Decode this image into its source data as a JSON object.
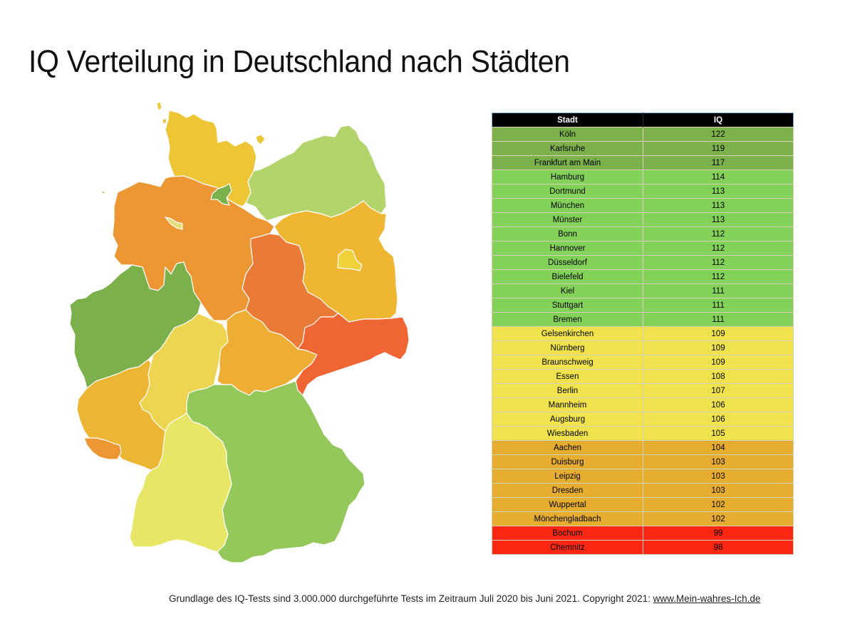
{
  "title": "IQ Verteilung in Deutschland nach Städten",
  "footnote": {
    "text": "Grundlage des IQ-Tests sind 3.000.000 durchgeführte Tests im Zeitraum Juli 2020 bis Juni 2021. Copyright 2021: ",
    "link": "www.Mein-wahres-Ich.de"
  },
  "colors": {
    "band_dark_green": "#7bb04a",
    "band_green": "#84d15a",
    "band_yellow": "#f0e24d",
    "band_orange": "#e6ad31",
    "band_red": "#fb2712",
    "header_bg": "#000000"
  },
  "chart_data": [
    {
      "type": "table",
      "title": "IQ Verteilung in Deutschland nach Städten",
      "columns": [
        "Stadt",
        "IQ"
      ],
      "rows": [
        {
          "city": "Köln",
          "iq": 122,
          "band": "band_dark_green"
        },
        {
          "city": "Karlsruhe",
          "iq": 119,
          "band": "band_dark_green"
        },
        {
          "city": "Frankfurt am Main",
          "iq": 117,
          "band": "band_dark_green"
        },
        {
          "city": "Hamburg",
          "iq": 114,
          "band": "band_green"
        },
        {
          "city": "Dortmund",
          "iq": 113,
          "band": "band_green"
        },
        {
          "city": "München",
          "iq": 113,
          "band": "band_green"
        },
        {
          "city": "Münster",
          "iq": 113,
          "band": "band_green"
        },
        {
          "city": "Bonn",
          "iq": 112,
          "band": "band_green"
        },
        {
          "city": "Hannover",
          "iq": 112,
          "band": "band_green"
        },
        {
          "city": "Düsseldorf",
          "iq": 112,
          "band": "band_green"
        },
        {
          "city": "Bielefeld",
          "iq": 112,
          "band": "band_green"
        },
        {
          "city": "Kiel",
          "iq": 111,
          "band": "band_green"
        },
        {
          "city": "Stuttgart",
          "iq": 111,
          "band": "band_green"
        },
        {
          "city": "Bremen",
          "iq": 111,
          "band": "band_green"
        },
        {
          "city": "Gelsenkirchen",
          "iq": 109,
          "band": "band_yellow"
        },
        {
          "city": "Nürnberg",
          "iq": 109,
          "band": "band_yellow"
        },
        {
          "city": "Braunschweig",
          "iq": 109,
          "band": "band_yellow"
        },
        {
          "city": "Essen",
          "iq": 108,
          "band": "band_yellow"
        },
        {
          "city": "Berlin",
          "iq": 107,
          "band": "band_yellow"
        },
        {
          "city": "Mannheim",
          "iq": 106,
          "band": "band_yellow"
        },
        {
          "city": "Augsburg",
          "iq": 106,
          "band": "band_yellow"
        },
        {
          "city": "Wiesbaden",
          "iq": 105,
          "band": "band_yellow"
        },
        {
          "city": "Aachen",
          "iq": 104,
          "band": "band_orange"
        },
        {
          "city": "Duisburg",
          "iq": 103,
          "band": "band_orange"
        },
        {
          "city": "Leipzig",
          "iq": 103,
          "band": "band_orange"
        },
        {
          "city": "Dresden",
          "iq": 103,
          "band": "band_orange"
        },
        {
          "city": "Wuppertal",
          "iq": 102,
          "band": "band_orange"
        },
        {
          "city": "Mönchengladbach",
          "iq": 102,
          "band": "band_orange"
        },
        {
          "city": "Bochum",
          "iq": 99,
          "band": "band_red"
        },
        {
          "city": "Chemnitz",
          "iq": 98,
          "band": "band_red"
        }
      ]
    },
    {
      "type": "heatmap",
      "title": "Choropleth map of German federal states",
      "legend": "none",
      "regions": [
        {
          "name": "Schleswig-Holstein",
          "color": "#edc535"
        },
        {
          "name": "Hamburg",
          "color": "#79b24b"
        },
        {
          "name": "Mecklenburg-Vorpommern",
          "color": "#b2d46b"
        },
        {
          "name": "Niedersachsen",
          "color": "#ec9734"
        },
        {
          "name": "Bremen",
          "color": "#e3e07a"
        },
        {
          "name": "Brandenburg",
          "color": "#efb631"
        },
        {
          "name": "Berlin",
          "color": "#f0d33b"
        },
        {
          "name": "Sachsen-Anhalt",
          "color": "#ea7b36"
        },
        {
          "name": "Nordrhein-Westfalen",
          "color": "#7bb04a"
        },
        {
          "name": "Hessen",
          "color": "#eed551"
        },
        {
          "name": "Thüringen",
          "color": "#eeae33"
        },
        {
          "name": "Sachsen",
          "color": "#ef6634"
        },
        {
          "name": "Rheinland-Pfalz",
          "color": "#ecb534"
        },
        {
          "name": "Saarland",
          "color": "#ec9634"
        },
        {
          "name": "Baden-Württemberg",
          "color": "#94c85a"
        },
        {
          "name": "Bayern",
          "color": "#e7e667"
        }
      ]
    }
  ]
}
